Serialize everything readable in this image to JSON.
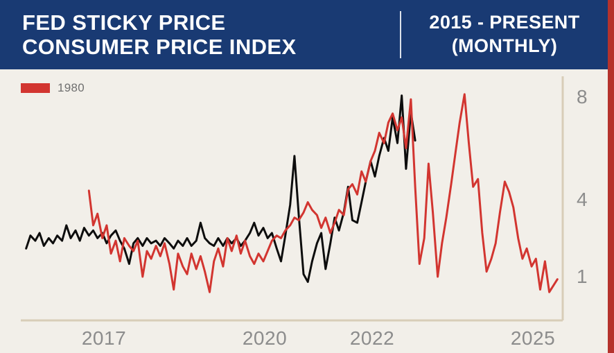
{
  "header": {
    "title_line1": "FED STICKY PRICE",
    "title_line2": "CONSUMER PRICE INDEX",
    "period_line1": "2015 - PRESENT",
    "period_line2": "(MONTHLY)"
  },
  "legend": {
    "items": [
      {
        "label": "1980",
        "color": "#d23530"
      }
    ]
  },
  "colors": {
    "header_bg": "#193a73",
    "background": "#f2efe9",
    "accent_red": "#d23530",
    "edge_strip": "#b5322c",
    "axis_line": "#d8cdb8",
    "tick_text": "#8c8c8c",
    "series_current": "#0d0d0d"
  },
  "chart_data": {
    "type": "line",
    "title": "FED STICKY PRICE CONSUMER PRICE INDEX",
    "subtitle": "2015 - PRESENT (MONTHLY)",
    "grid": false,
    "legend_position": "top-left",
    "x_range": [
      2015.45,
      2025.55
    ],
    "y_range": [
      -0.7,
      8.8
    ],
    "x_ticks": [
      {
        "label": "2017",
        "x": 2017
      },
      {
        "label": "2020",
        "x": 2020
      },
      {
        "label": "2022",
        "x": 2022
      },
      {
        "label": "2025",
        "x": 2025
      }
    ],
    "y_ticks": [
      {
        "label": "8",
        "y": 8
      },
      {
        "label": "4",
        "y": 4
      },
      {
        "label": "1",
        "y": 1
      }
    ],
    "series": [
      {
        "name": "2015-present",
        "color": "#0d0d0d",
        "points": [
          [
            2015.55,
            2.1
          ],
          [
            2015.63,
            2.6
          ],
          [
            2015.72,
            2.4
          ],
          [
            2015.8,
            2.7
          ],
          [
            2015.88,
            2.2
          ],
          [
            2015.97,
            2.5
          ],
          [
            2016.05,
            2.3
          ],
          [
            2016.13,
            2.6
          ],
          [
            2016.22,
            2.4
          ],
          [
            2016.3,
            3.0
          ],
          [
            2016.38,
            2.5
          ],
          [
            2016.47,
            2.8
          ],
          [
            2016.55,
            2.4
          ],
          [
            2016.63,
            2.9
          ],
          [
            2016.72,
            2.6
          ],
          [
            2016.8,
            2.8
          ],
          [
            2016.88,
            2.5
          ],
          [
            2016.97,
            2.7
          ],
          [
            2017.05,
            2.3
          ],
          [
            2017.13,
            2.6
          ],
          [
            2017.22,
            2.8
          ],
          [
            2017.3,
            2.4
          ],
          [
            2017.38,
            2.1
          ],
          [
            2017.47,
            1.5
          ],
          [
            2017.55,
            2.3
          ],
          [
            2017.63,
            2.5
          ],
          [
            2017.72,
            2.2
          ],
          [
            2017.8,
            2.5
          ],
          [
            2017.88,
            2.3
          ],
          [
            2017.97,
            2.4
          ],
          [
            2018.05,
            2.2
          ],
          [
            2018.13,
            2.5
          ],
          [
            2018.22,
            2.3
          ],
          [
            2018.3,
            2.1
          ],
          [
            2018.38,
            2.4
          ],
          [
            2018.47,
            2.2
          ],
          [
            2018.55,
            2.5
          ],
          [
            2018.63,
            2.2
          ],
          [
            2018.72,
            2.4
          ],
          [
            2018.8,
            3.1
          ],
          [
            2018.88,
            2.5
          ],
          [
            2018.97,
            2.3
          ],
          [
            2019.05,
            2.2
          ],
          [
            2019.13,
            2.5
          ],
          [
            2019.22,
            2.2
          ],
          [
            2019.3,
            2.5
          ],
          [
            2019.38,
            2.3
          ],
          [
            2019.47,
            2.5
          ],
          [
            2019.55,
            2.2
          ],
          [
            2019.63,
            2.4
          ],
          [
            2019.72,
            2.7
          ],
          [
            2019.8,
            3.1
          ],
          [
            2019.88,
            2.6
          ],
          [
            2019.97,
            2.9
          ],
          [
            2020.05,
            2.5
          ],
          [
            2020.13,
            2.7
          ],
          [
            2020.22,
            2.1
          ],
          [
            2020.3,
            1.6
          ],
          [
            2020.38,
            2.6
          ],
          [
            2020.47,
            3.8
          ],
          [
            2020.55,
            5.7
          ],
          [
            2020.63,
            3.4
          ],
          [
            2020.72,
            1.1
          ],
          [
            2020.8,
            0.8
          ],
          [
            2020.88,
            1.6
          ],
          [
            2020.97,
            2.3
          ],
          [
            2021.05,
            2.7
          ],
          [
            2021.13,
            1.3
          ],
          [
            2021.22,
            2.3
          ],
          [
            2021.3,
            3.3
          ],
          [
            2021.38,
            2.8
          ],
          [
            2021.47,
            3.5
          ],
          [
            2021.55,
            4.5
          ],
          [
            2021.63,
            3.2
          ],
          [
            2021.72,
            3.1
          ],
          [
            2021.8,
            3.9
          ],
          [
            2021.88,
            4.7
          ],
          [
            2021.97,
            5.5
          ],
          [
            2022.05,
            4.9
          ],
          [
            2022.13,
            5.7
          ],
          [
            2022.22,
            6.4
          ],
          [
            2022.3,
            5.9
          ],
          [
            2022.38,
            7.2
          ],
          [
            2022.47,
            6.2
          ],
          [
            2022.55,
            8.05
          ],
          [
            2022.63,
            5.2
          ],
          [
            2022.72,
            7.4
          ],
          [
            2022.8,
            6.3
          ]
        ]
      },
      {
        "name": "1980",
        "color": "#d23530",
        "points": [
          [
            2016.72,
            4.35
          ],
          [
            2016.8,
            3.0
          ],
          [
            2016.88,
            3.45
          ],
          [
            2016.97,
            2.5
          ],
          [
            2017.05,
            3.0
          ],
          [
            2017.13,
            1.9
          ],
          [
            2017.22,
            2.4
          ],
          [
            2017.3,
            1.6
          ],
          [
            2017.38,
            2.5
          ],
          [
            2017.47,
            2.2
          ],
          [
            2017.55,
            2.0
          ],
          [
            2017.63,
            2.4
          ],
          [
            2017.72,
            1.0
          ],
          [
            2017.8,
            2.0
          ],
          [
            2017.88,
            1.7
          ],
          [
            2017.97,
            2.2
          ],
          [
            2018.05,
            1.8
          ],
          [
            2018.13,
            2.3
          ],
          [
            2018.22,
            1.5
          ],
          [
            2018.3,
            0.5
          ],
          [
            2018.38,
            1.9
          ],
          [
            2018.47,
            1.4
          ],
          [
            2018.55,
            1.1
          ],
          [
            2018.63,
            1.9
          ],
          [
            2018.72,
            1.3
          ],
          [
            2018.8,
            1.8
          ],
          [
            2018.88,
            1.2
          ],
          [
            2018.97,
            0.4
          ],
          [
            2019.05,
            1.6
          ],
          [
            2019.13,
            2.1
          ],
          [
            2019.22,
            1.4
          ],
          [
            2019.3,
            2.5
          ],
          [
            2019.38,
            2.0
          ],
          [
            2019.47,
            2.6
          ],
          [
            2019.55,
            1.9
          ],
          [
            2019.63,
            2.4
          ],
          [
            2019.72,
            1.8
          ],
          [
            2019.8,
            1.5
          ],
          [
            2019.88,
            1.9
          ],
          [
            2019.97,
            1.6
          ],
          [
            2020.05,
            2.0
          ],
          [
            2020.13,
            2.4
          ],
          [
            2020.22,
            2.6
          ],
          [
            2020.3,
            2.5
          ],
          [
            2020.38,
            2.8
          ],
          [
            2020.47,
            3.0
          ],
          [
            2020.55,
            3.3
          ],
          [
            2020.63,
            3.2
          ],
          [
            2020.72,
            3.5
          ],
          [
            2020.8,
            3.9
          ],
          [
            2020.88,
            3.6
          ],
          [
            2020.97,
            3.4
          ],
          [
            2021.05,
            2.9
          ],
          [
            2021.13,
            3.3
          ],
          [
            2021.22,
            2.7
          ],
          [
            2021.3,
            3.1
          ],
          [
            2021.38,
            3.6
          ],
          [
            2021.47,
            3.4
          ],
          [
            2021.55,
            4.4
          ],
          [
            2021.63,
            4.6
          ],
          [
            2021.72,
            4.2
          ],
          [
            2021.8,
            5.1
          ],
          [
            2021.88,
            4.7
          ],
          [
            2021.97,
            5.5
          ],
          [
            2022.05,
            5.9
          ],
          [
            2022.13,
            6.6
          ],
          [
            2022.22,
            6.2
          ],
          [
            2022.3,
            7.0
          ],
          [
            2022.38,
            7.35
          ],
          [
            2022.47,
            6.7
          ],
          [
            2022.55,
            7.2
          ],
          [
            2022.63,
            6.0
          ],
          [
            2022.72,
            7.9
          ],
          [
            2022.8,
            4.5
          ],
          [
            2022.88,
            1.5
          ],
          [
            2022.97,
            2.5
          ],
          [
            2023.05,
            5.4
          ],
          [
            2023.13,
            3.5
          ],
          [
            2023.22,
            1.0
          ],
          [
            2023.3,
            2.3
          ],
          [
            2023.38,
            3.3
          ],
          [
            2023.47,
            4.6
          ],
          [
            2023.55,
            5.8
          ],
          [
            2023.63,
            7.0
          ],
          [
            2023.72,
            8.1
          ],
          [
            2023.8,
            6.2
          ],
          [
            2023.88,
            4.5
          ],
          [
            2023.97,
            4.8
          ],
          [
            2024.05,
            2.7
          ],
          [
            2024.13,
            1.2
          ],
          [
            2024.22,
            1.7
          ],
          [
            2024.3,
            2.3
          ],
          [
            2024.38,
            3.5
          ],
          [
            2024.47,
            4.7
          ],
          [
            2024.55,
            4.3
          ],
          [
            2024.63,
            3.7
          ],
          [
            2024.72,
            2.5
          ],
          [
            2024.8,
            1.7
          ],
          [
            2024.88,
            2.1
          ],
          [
            2024.97,
            1.4
          ],
          [
            2025.05,
            1.7
          ],
          [
            2025.13,
            0.5
          ],
          [
            2025.22,
            1.6
          ],
          [
            2025.3,
            0.4
          ],
          [
            2025.45,
            0.9
          ]
        ]
      }
    ]
  }
}
